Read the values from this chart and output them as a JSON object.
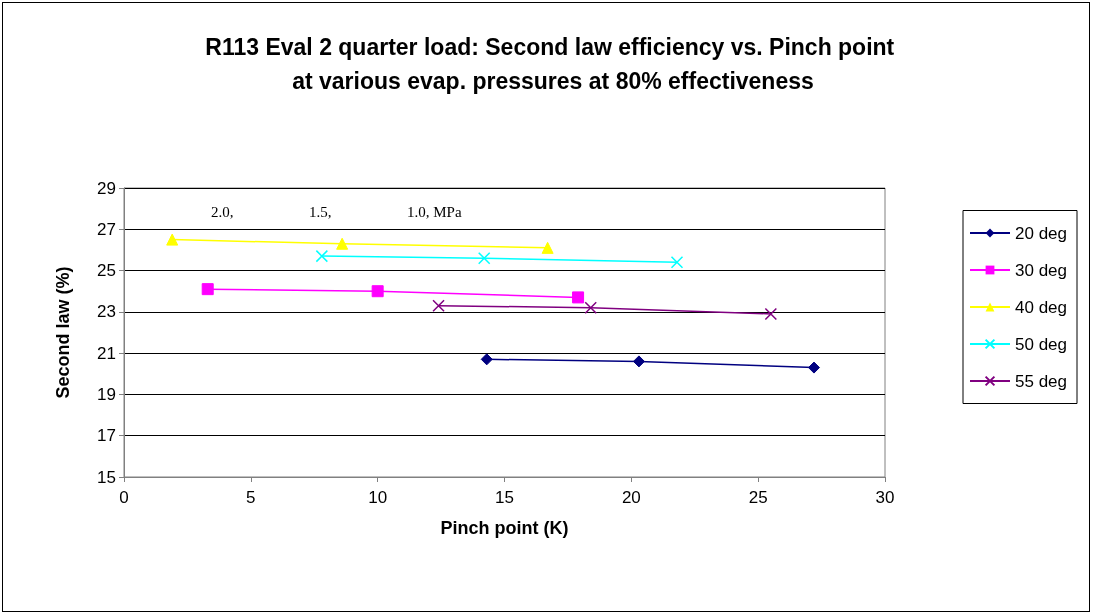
{
  "chart_data": {
    "type": "line",
    "title": "R113 Eval 2 quarter load: Second law efficiency vs. Pinch point at various evap. pressures at 80% effectiveness",
    "xlabel": "Pinch point (K)",
    "ylabel": "Second law (%)",
    "annotations": [
      "2.0,",
      "1.5,",
      "1.0, MPa"
    ],
    "xlim": [
      0,
      30
    ],
    "xticks": [
      0,
      5,
      10,
      15,
      20,
      25,
      30
    ],
    "ylim": [
      15,
      29
    ],
    "yticks": [
      15,
      17,
      19,
      21,
      23,
      25,
      27,
      29
    ],
    "grid": "y",
    "legend": "right",
    "line_style": "solid",
    "series": [
      {
        "name": "20 deg",
        "color": "#000080",
        "marker": "diamond",
        "x": [
          14.3,
          20.3,
          27.2
        ],
        "values": [
          20.7,
          20.6,
          20.3
        ]
      },
      {
        "name": "30 deg",
        "color": "#ff00ff",
        "marker": "square",
        "x": [
          3.3,
          10.0,
          17.9
        ],
        "values": [
          24.1,
          24.0,
          23.7
        ]
      },
      {
        "name": "40 deg",
        "color": "#ffff00",
        "marker": "triangle",
        "x": [
          1.9,
          8.6,
          16.7
        ],
        "values": [
          26.5,
          26.3,
          26.1
        ]
      },
      {
        "name": "50 deg",
        "color": "#00ffff",
        "marker": "cross",
        "x": [
          7.8,
          14.2,
          21.8
        ],
        "values": [
          25.7,
          25.6,
          25.4
        ]
      },
      {
        "name": "55 deg",
        "color": "#800080",
        "marker": "cross",
        "x": [
          12.4,
          18.4,
          25.5
        ],
        "values": [
          23.3,
          23.2,
          22.9
        ]
      }
    ]
  }
}
